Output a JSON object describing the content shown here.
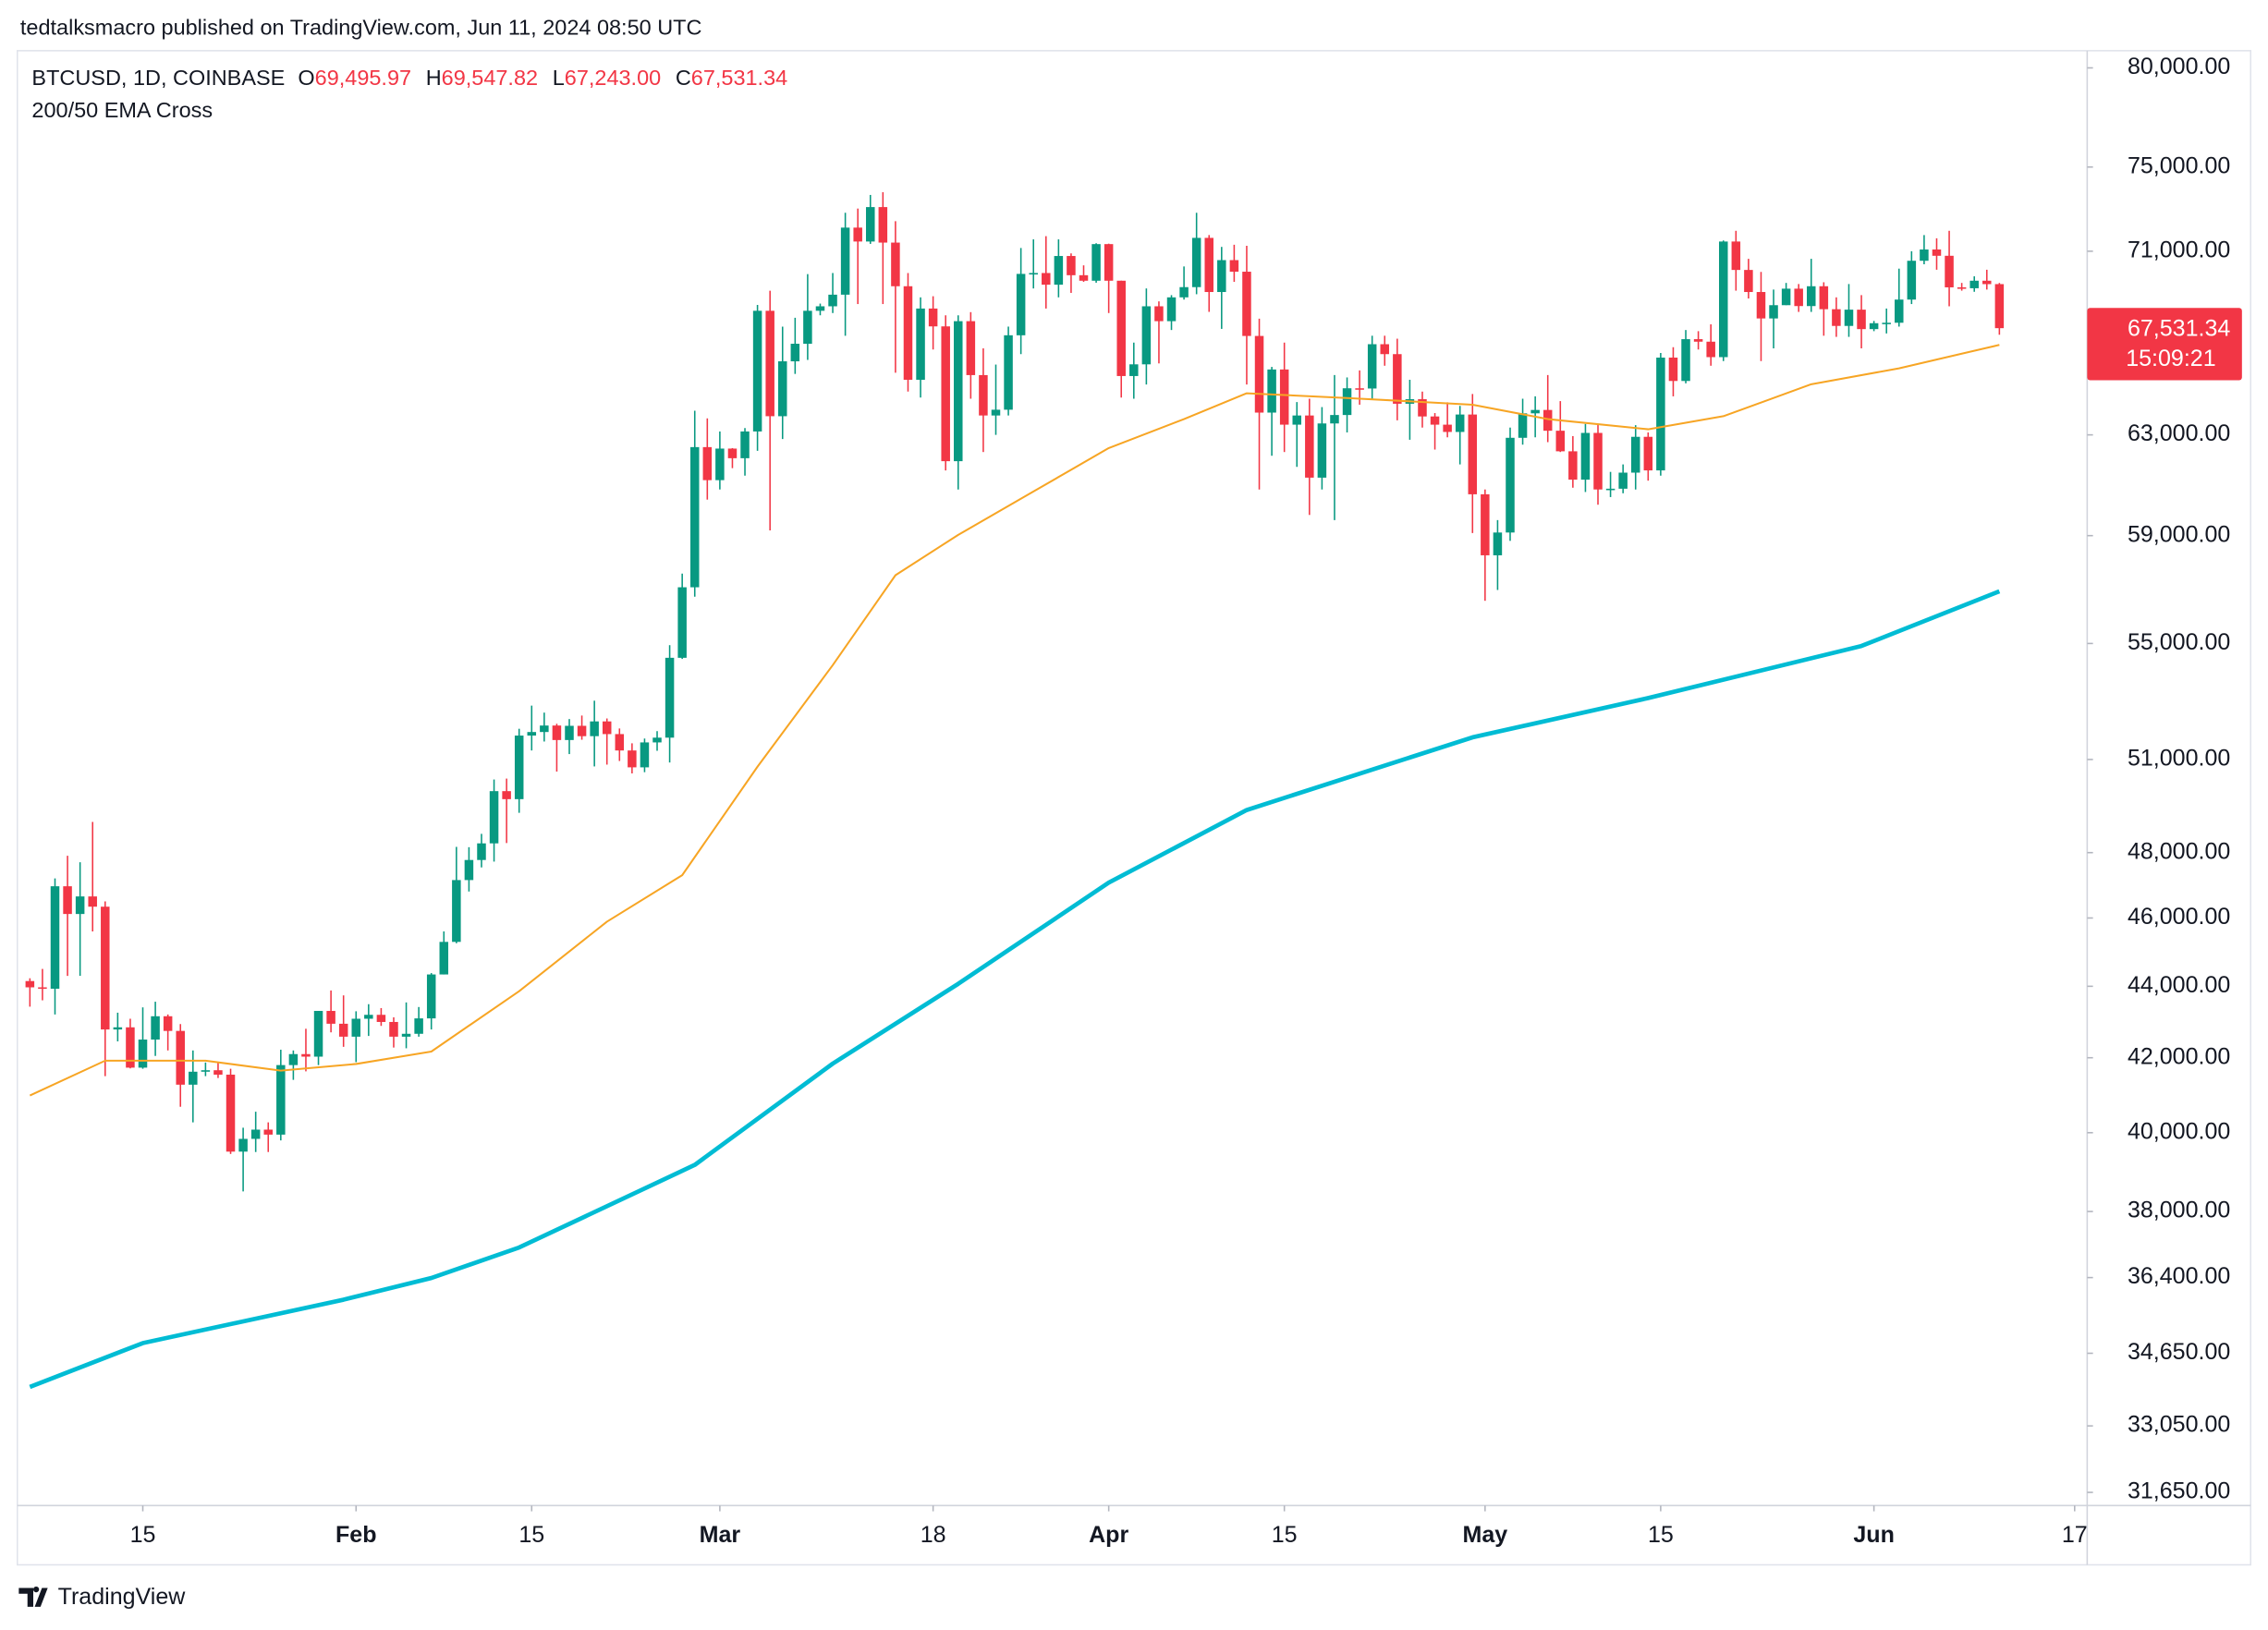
{
  "header": "tedtalksmacro published on TradingView.com, Jun 11, 2024 08:50 UTC",
  "footer": "TradingView",
  "chart_data": {
    "type": "candlestick",
    "title": "BTCUSD, 1D, COINBASE",
    "legend_ohlc": [
      {
        "key": "O",
        "value": 69495.97,
        "label": "69,495.97"
      },
      {
        "key": "H",
        "value": 69547.82,
        "label": "69,547.82"
      },
      {
        "key": "L",
        "value": 67243.0,
        "label": "67,243.00"
      },
      {
        "key": "C",
        "value": 67531.34,
        "label": "67,531.34"
      }
    ],
    "indicator": "200/50 EMA Cross",
    "last_price": {
      "value": 67531.34,
      "label": "67,531.34"
    },
    "countdown": "15:09:21",
    "up_color": "#089981",
    "down_color": "#f23645",
    "log_scale": true,
    "xlim": [
      "2024-01-05",
      "2024-06-18"
    ],
    "ylim": [
      31380,
      80900
    ],
    "xticks": [
      {
        "value": "2024-01-15",
        "label": "15"
      },
      {
        "value": "2024-02-01",
        "label": "Feb"
      },
      {
        "value": "2024-02-15",
        "label": "15"
      },
      {
        "value": "2024-03-01",
        "label": "Mar"
      },
      {
        "value": "2024-03-18",
        "label": "18"
      },
      {
        "value": "2024-04-01",
        "label": "Apr"
      },
      {
        "value": "2024-04-15",
        "label": "15"
      },
      {
        "value": "2024-05-01",
        "label": "May"
      },
      {
        "value": "2024-05-15",
        "label": "15"
      },
      {
        "value": "2024-06-01",
        "label": "Jun"
      },
      {
        "value": "2024-06-17",
        "label": "17"
      }
    ],
    "yticks": [
      {
        "value": 80000,
        "label": "80,000.00"
      },
      {
        "value": 75000,
        "label": "75,000.00"
      },
      {
        "value": 71000,
        "label": "71,000.00"
      },
      {
        "value": 63000,
        "label": "63,000.00"
      },
      {
        "value": 59000,
        "label": "59,000.00"
      },
      {
        "value": 55000,
        "label": "55,000.00"
      },
      {
        "value": 51000,
        "label": "51,000.00"
      },
      {
        "value": 48000,
        "label": "48,000.00"
      },
      {
        "value": 46000,
        "label": "46,000.00"
      },
      {
        "value": 44000,
        "label": "44,000.00"
      },
      {
        "value": 42000,
        "label": "42,000.00"
      },
      {
        "value": 40000,
        "label": "40,000.00"
      },
      {
        "value": 38000,
        "label": "38,000.00"
      },
      {
        "value": 36400,
        "label": "36,400.00"
      },
      {
        "value": 34650,
        "label": "34,650.00"
      },
      {
        "value": 33050,
        "label": "33,050.00"
      },
      {
        "value": 31650,
        "label": "31,650.00"
      }
    ],
    "x": [
      "2024-01-06",
      "2024-01-07",
      "2024-01-08",
      "2024-01-09",
      "2024-01-10",
      "2024-01-11",
      "2024-01-12",
      "2024-01-13",
      "2024-01-14",
      "2024-01-15",
      "2024-01-16",
      "2024-01-17",
      "2024-01-18",
      "2024-01-19",
      "2024-01-20",
      "2024-01-21",
      "2024-01-22",
      "2024-01-23",
      "2024-01-24",
      "2024-01-25",
      "2024-01-26",
      "2024-01-27",
      "2024-01-28",
      "2024-01-29",
      "2024-01-30",
      "2024-01-31",
      "2024-02-01",
      "2024-02-02",
      "2024-02-03",
      "2024-02-04",
      "2024-02-05",
      "2024-02-06",
      "2024-02-07",
      "2024-02-08",
      "2024-02-09",
      "2024-02-10",
      "2024-02-11",
      "2024-02-12",
      "2024-02-13",
      "2024-02-14",
      "2024-02-15",
      "2024-02-16",
      "2024-02-17",
      "2024-02-18",
      "2024-02-19",
      "2024-02-20",
      "2024-02-21",
      "2024-02-22",
      "2024-02-23",
      "2024-02-24",
      "2024-02-25",
      "2024-02-26",
      "2024-02-27",
      "2024-02-28",
      "2024-02-29",
      "2024-03-01",
      "2024-03-02",
      "2024-03-03",
      "2024-03-04",
      "2024-03-05",
      "2024-03-06",
      "2024-03-07",
      "2024-03-08",
      "2024-03-09",
      "2024-03-10",
      "2024-03-11",
      "2024-03-12",
      "2024-03-13",
      "2024-03-14",
      "2024-03-15",
      "2024-03-16",
      "2024-03-17",
      "2024-03-18",
      "2024-03-19",
      "2024-03-20",
      "2024-03-21",
      "2024-03-22",
      "2024-03-23",
      "2024-03-24",
      "2024-03-25",
      "2024-03-26",
      "2024-03-27",
      "2024-03-28",
      "2024-03-29",
      "2024-03-30",
      "2024-03-31",
      "2024-04-01",
      "2024-04-02",
      "2024-04-03",
      "2024-04-04",
      "2024-04-05",
      "2024-04-06",
      "2024-04-07",
      "2024-04-08",
      "2024-04-09",
      "2024-04-10",
      "2024-04-11",
      "2024-04-12",
      "2024-04-13",
      "2024-04-14",
      "2024-04-15",
      "2024-04-16",
      "2024-04-17",
      "2024-04-18",
      "2024-04-19",
      "2024-04-20",
      "2024-04-21",
      "2024-04-22",
      "2024-04-23",
      "2024-04-24",
      "2024-04-25",
      "2024-04-26",
      "2024-04-27",
      "2024-04-28",
      "2024-04-29",
      "2024-04-30",
      "2024-05-01",
      "2024-05-02",
      "2024-05-03",
      "2024-05-04",
      "2024-05-05",
      "2024-05-06",
      "2024-05-07",
      "2024-05-08",
      "2024-05-09",
      "2024-05-10",
      "2024-05-11",
      "2024-05-12",
      "2024-05-13",
      "2024-05-14",
      "2024-05-15",
      "2024-05-16",
      "2024-05-17",
      "2024-05-18",
      "2024-05-19",
      "2024-05-20",
      "2024-05-21",
      "2024-05-22",
      "2024-05-23",
      "2024-05-24",
      "2024-05-25",
      "2024-05-26",
      "2024-05-27",
      "2024-05-28",
      "2024-05-29",
      "2024-05-30",
      "2024-05-31",
      "2024-06-01",
      "2024-06-02",
      "2024-06-03",
      "2024-06-04",
      "2024-06-05",
      "2024-06-06",
      "2024-06-07",
      "2024-06-08",
      "2024-06-09",
      "2024-06-10",
      "2024-06-11"
    ],
    "open": [
      44150,
      43970,
      43930,
      46960,
      46120,
      46650,
      46340,
      42780,
      42840,
      41730,
      42500,
      43150,
      42740,
      41270,
      41620,
      41660,
      41540,
      39510,
      39840,
      40080,
      39950,
      41800,
      42100,
      42030,
      43300,
      42940,
      42580,
      43080,
      43190,
      42990,
      42580,
      42660,
      43090,
      44340,
      45290,
      47150,
      47770,
      48290,
      49960,
      49700,
      51800,
      51920,
      52140,
      51650,
      52130,
      51780,
      52280,
      51850,
      51300,
      50740,
      51570,
      51730,
      54490,
      57050,
      62500,
      61170,
      62440,
      62050,
      63140,
      68300,
      63770,
      66090,
      66850,
      68300,
      68500,
      69020,
      72100,
      71450,
      73070,
      71400,
      69400,
      65300,
      68400,
      67610,
      61930,
      67840,
      65500,
      63800,
      64040,
      67220,
      69960,
      70000,
      69470,
      70780,
      69900,
      69650,
      71330,
      69650,
      65460,
      65960,
      68500,
      67840,
      68900,
      69360,
      71620,
      69140,
      70590,
      70060,
      67190,
      63920,
      65740,
      63420,
      63800,
      61270,
      63470,
      63820,
      64940,
      64930,
      66830,
      66400,
      64290,
      64480,
      63760,
      63420,
      63120,
      63840,
      60610,
      58250,
      59120,
      62880,
      63890,
      64030,
      63170,
      62330,
      61190,
      63080,
      60800,
      60830,
      61470,
      62920,
      61560,
      66250,
      65250,
      67050,
      66940,
      66270,
      71450,
      70140,
      69140,
      67960,
      68550,
      69290,
      68510,
      69400,
      68370,
      67630,
      68350,
      67490,
      67750,
      67770,
      68800,
      70560,
      71080,
      70790,
      69350,
      69310,
      69650,
      69495.97
    ],
    "high": [
      44230,
      44500,
      47200,
      47900,
      47700,
      48970,
      46500,
      43250,
      43080,
      43400,
      43560,
      43200,
      42930,
      42200,
      41870,
      41880,
      41700,
      40130,
      40550,
      40270,
      42220,
      42200,
      42800,
      43300,
      43880,
      43740,
      43290,
      43490,
      43380,
      43120,
      43540,
      43410,
      44380,
      45600,
      48180,
      48170,
      48590,
      50340,
      50370,
      52030,
      52820,
      52580,
      52200,
      52360,
      52480,
      52990,
      52380,
      52040,
      51540,
      51700,
      51950,
      54940,
      57560,
      64000,
      63680,
      63140,
      62460,
      63280,
      68560,
      69200,
      67600,
      67990,
      69950,
      68620,
      70000,
      72800,
      73000,
      73650,
      73780,
      72400,
      70000,
      68900,
      68950,
      68100,
      68100,
      68240,
      66650,
      65950,
      67600,
      71150,
      71550,
      71700,
      71550,
      70900,
      70350,
      71370,
      71350,
      69650,
      66900,
      69300,
      68720,
      69000,
      70300,
      72800,
      71750,
      71200,
      71300,
      71250,
      67950,
      65850,
      66900,
      64360,
      64500,
      64150,
      65500,
      65400,
      65700,
      67200,
      67200,
      67070,
      65300,
      64800,
      63900,
      64350,
      64200,
      64700,
      60800,
      59600,
      63300,
      64500,
      64600,
      65500,
      64400,
      62950,
      63450,
      63450,
      61500,
      61800,
      63400,
      63100,
      66450,
      66700,
      67450,
      67400,
      67700,
      71500,
      71950,
      70650,
      70050,
      69250,
      69550,
      69500,
      70650,
      69580,
      68900,
      69500,
      69000,
      67850,
      68400,
      70200,
      71000,
      71750,
      71600,
      71950,
      69550,
      69850,
      70150,
      69547.82
    ],
    "low": [
      43420,
      43600,
      43200,
      44300,
      44300,
      45600,
      41500,
      42450,
      41710,
      41700,
      42050,
      42200,
      40680,
      40270,
      41500,
      41450,
      39450,
      38500,
      39500,
      39500,
      39800,
      41400,
      41630,
      41800,
      42700,
      42300,
      41880,
      42600,
      42880,
      42280,
      42260,
      42580,
      42780,
      44340,
      45250,
      46800,
      47540,
      47720,
      48300,
      49260,
      51300,
      51600,
      50600,
      51180,
      51660,
      50770,
      50830,
      50950,
      50540,
      50580,
      51290,
      50900,
      54450,
      56700,
      60400,
      60800,
      61650,
      61350,
      62350,
      59200,
      62830,
      65550,
      66150,
      68100,
      68200,
      67200,
      68600,
      71340,
      68600,
      65600,
      64800,
      64550,
      66600,
      61560,
      60800,
      64500,
      62300,
      63000,
      63800,
      66400,
      69300,
      68400,
      68900,
      69100,
      69600,
      69560,
      68200,
      64550,
      64500,
      65100,
      66000,
      67450,
      68800,
      69040,
      68250,
      67500,
      69600,
      65100,
      60800,
      62150,
      62300,
      61700,
      59800,
      60800,
      59600,
      63100,
      64250,
      64500,
      65900,
      63600,
      62800,
      63300,
      62400,
      62900,
      61800,
      59100,
      56550,
      56950,
      58800,
      62600,
      62900,
      62700,
      62300,
      60870,
      60700,
      60200,
      60500,
      60650,
      60800,
      61150,
      61350,
      64600,
      65150,
      66600,
      65900,
      66100,
      69200,
      68850,
      66100,
      66650,
      68550,
      68250,
      68250,
      67200,
      67150,
      67150,
      66650,
      67400,
      67300,
      67600,
      68600,
      70400,
      70150,
      68500,
      69200,
      69150,
      69250,
      67243.0
    ],
    "close": [
      43970,
      43930,
      46960,
      46120,
      46650,
      46340,
      42780,
      42840,
      41730,
      42500,
      43150,
      42740,
      41270,
      41620,
      41660,
      41540,
      39510,
      39840,
      40080,
      39950,
      41800,
      42100,
      42030,
      43300,
      42940,
      42580,
      43080,
      43190,
      42990,
      42580,
      42660,
      43090,
      44340,
      45290,
      47150,
      47770,
      48290,
      49960,
      49700,
      51800,
      51920,
      52140,
      51650,
      52130,
      51780,
      52280,
      51850,
      51300,
      50740,
      51570,
      51730,
      54490,
      57050,
      62500,
      61170,
      62440,
      62050,
      63140,
      68300,
      63770,
      66090,
      66850,
      68300,
      68500,
      69020,
      72100,
      71450,
      73070,
      71400,
      69400,
      65300,
      68400,
      67610,
      61930,
      67840,
      65500,
      63800,
      64040,
      67220,
      69960,
      70000,
      69470,
      70780,
      69900,
      69650,
      71330,
      69650,
      65460,
      65960,
      68500,
      67840,
      68900,
      69360,
      71620,
      69140,
      70590,
      70060,
      67190,
      63920,
      65740,
      63420,
      63800,
      61270,
      63470,
      63820,
      64940,
      64930,
      66830,
      66400,
      64290,
      64480,
      63760,
      63420,
      63120,
      63840,
      60610,
      58250,
      59120,
      62880,
      63890,
      64030,
      63170,
      62330,
      61190,
      63080,
      60800,
      60830,
      61470,
      62920,
      61560,
      66250,
      65250,
      67050,
      66940,
      66270,
      71450,
      70140,
      69140,
      67960,
      68550,
      69290,
      68510,
      69400,
      68370,
      67630,
      68350,
      67490,
      67750,
      67770,
      68800,
      70560,
      71080,
      70790,
      69350,
      69310,
      69650,
      69495.97,
      67531.34
    ],
    "series": [
      {
        "color": "#f7a524",
        "x": [
          "2024-01-06",
          "2024-01-12",
          "2024-01-20",
          "2024-01-26",
          "2024-02-01",
          "2024-02-07",
          "2024-02-14",
          "2024-02-21",
          "2024-02-27",
          "2024-03-04",
          "2024-03-10",
          "2024-03-15",
          "2024-03-20",
          "2024-03-26",
          "2024-04-01",
          "2024-04-07",
          "2024-04-12",
          "2024-04-20",
          "2024-04-30",
          "2024-05-06",
          "2024-05-14",
          "2024-05-20",
          "2024-05-27",
          "2024-06-03",
          "2024-06-11"
        ],
        "values": [
          40980,
          41920,
          41920,
          41650,
          41830,
          42170,
          43860,
          45890,
          47300,
          50760,
          54230,
          57500,
          59030,
          60720,
          62460,
          63650,
          64730,
          64530,
          64250,
          63650,
          63230,
          63770,
          65110,
          65790,
          66800
        ]
      },
      {
        "color": "#00bcd4",
        "x": [
          "2024-01-06",
          "2024-01-15",
          "2024-01-31",
          "2024-02-07",
          "2024-02-14",
          "2024-02-28",
          "2024-03-10",
          "2024-03-20",
          "2024-04-01",
          "2024-04-12",
          "2024-04-30",
          "2024-05-14",
          "2024-05-31",
          "2024-06-11"
        ],
        "values": [
          33900,
          34880,
          35880,
          36390,
          37120,
          39170,
          41840,
          44070,
          47070,
          49350,
          51740,
          53080,
          54910,
          56900
        ]
      }
    ]
  }
}
